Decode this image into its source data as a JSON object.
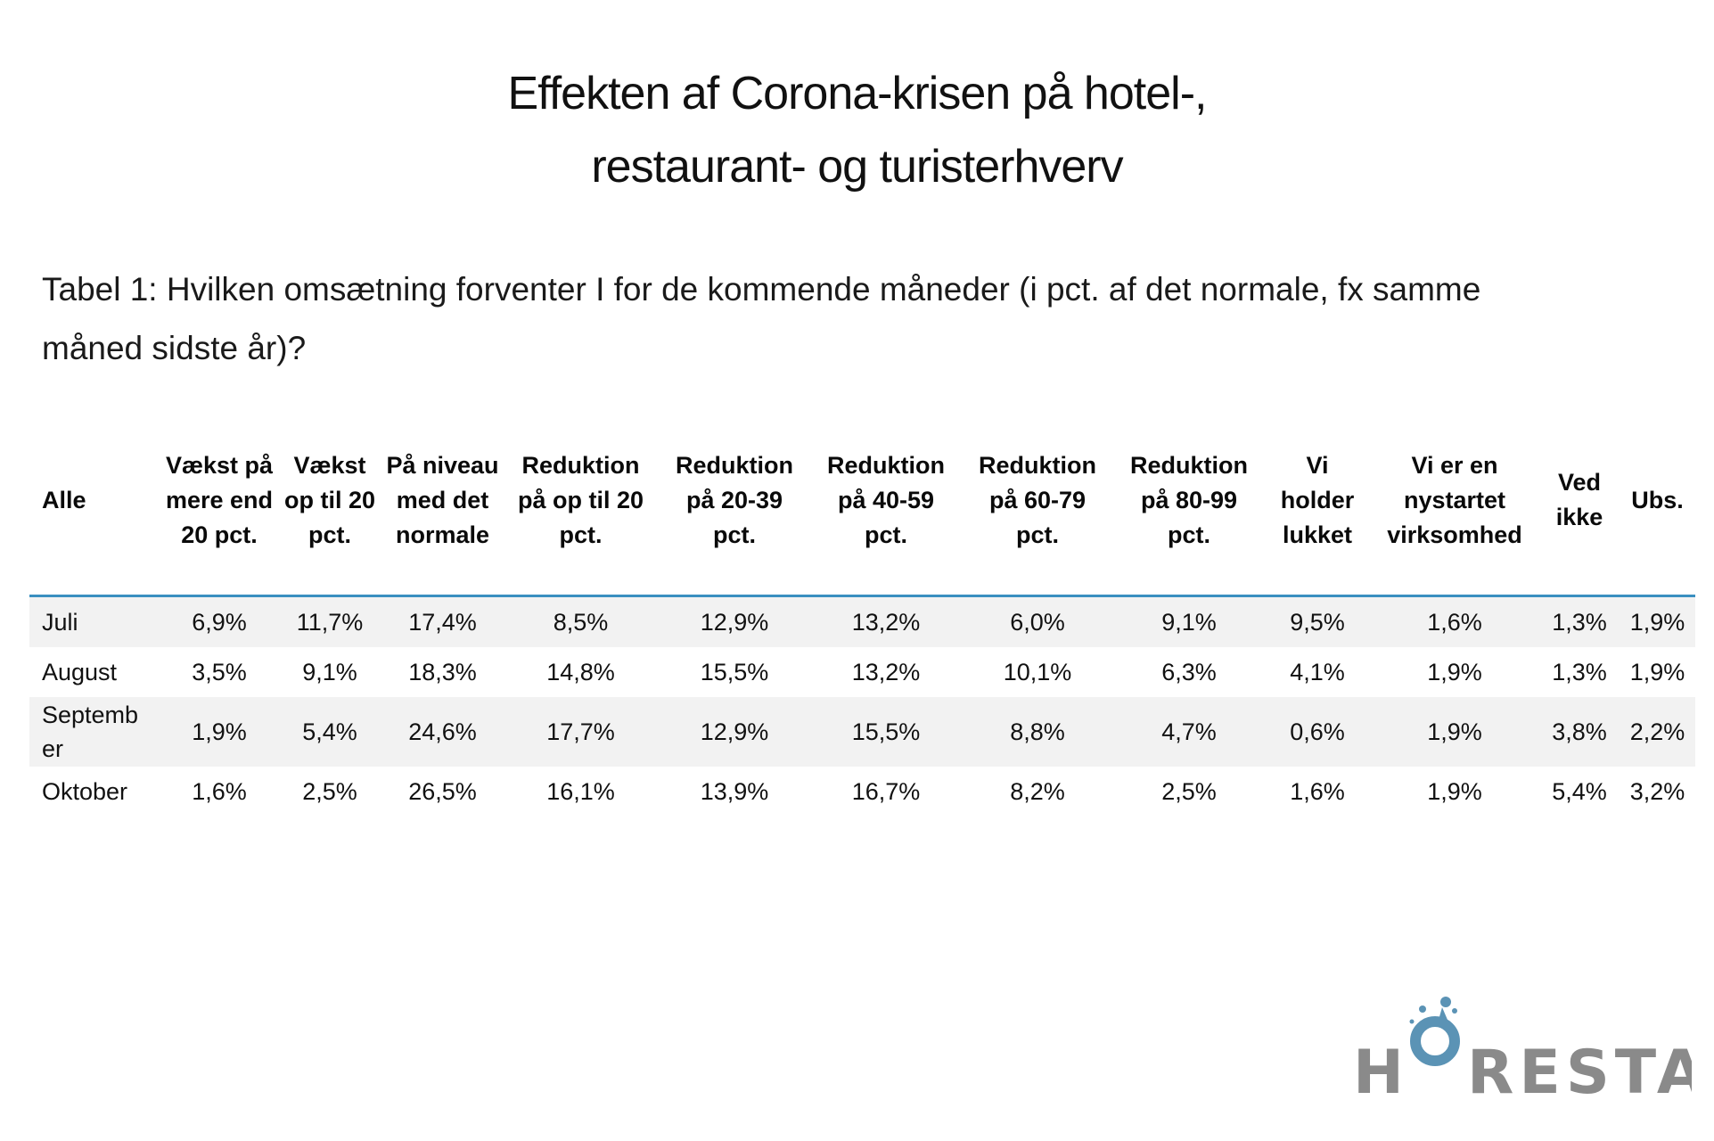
{
  "title": {
    "line1": "Effekten af Corona-krisen på hotel-,",
    "line2": "restaurant- og turisterhverv"
  },
  "caption": "Tabel 1: Hvilken omsætning forventer I for de kommende måneder (i pct. af det normale, fx samme måned sidste år)?",
  "table": {
    "headers": [
      "Alle",
      "Vækst på mere end 20 pct.",
      "Vækst op til 20 pct.",
      "På niveau med det normale",
      "Reduktion på op til 20 pct.",
      "Reduktion på 20-39 pct.",
      "Reduktion på 40-59 pct.",
      "Reduktion på 60-79 pct.",
      "Reduktion på 80-99 pct.",
      "Vi holder lukket",
      "Vi er en nystartet virksomhed",
      "Ved ikke",
      "Ubs."
    ],
    "rows": [
      [
        "Juli",
        "6,9%",
        "11,7%",
        "17,4%",
        "8,5%",
        "12,9%",
        "13,2%",
        "6,0%",
        "9,1%",
        "9,5%",
        "1,6%",
        "1,3%",
        "1,9%"
      ],
      [
        "August",
        "3,5%",
        "9,1%",
        "18,3%",
        "14,8%",
        "15,5%",
        "13,2%",
        "10,1%",
        "6,3%",
        "4,1%",
        "1,9%",
        "1,3%",
        "1,9%"
      ],
      [
        "Septemb er",
        "1,9%",
        "5,4%",
        "24,6%",
        "17,7%",
        "12,9%",
        "15,5%",
        "8,8%",
        "4,7%",
        "0,6%",
        "1,9%",
        "3,8%",
        "2,2%"
      ],
      [
        "Oktober",
        "1,6%",
        "2,5%",
        "26,5%",
        "16,1%",
        "13,9%",
        "16,7%",
        "8,2%",
        "2,5%",
        "1,6%",
        "1,9%",
        "5,4%",
        "3,2%"
      ]
    ]
  },
  "logo": {
    "text": "HORESTA",
    "letter_color": "#8a8a8a",
    "ring_color": "#5b93b5"
  },
  "colors": {
    "header_rule": "#3a8fc0",
    "row_shade": "#f2f2f2"
  }
}
